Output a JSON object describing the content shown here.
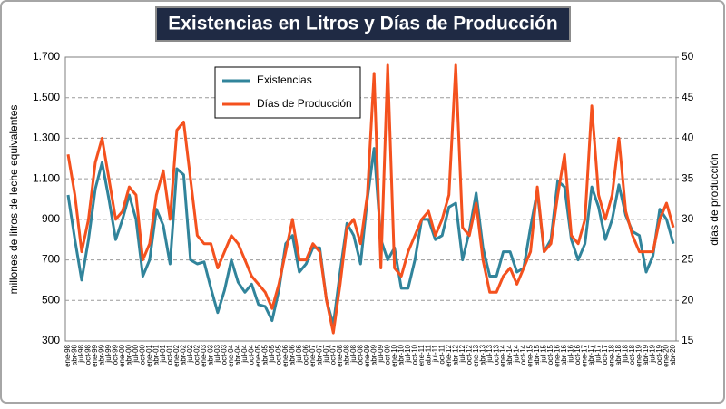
{
  "chart_data": {
    "type": "line",
    "title": "Existencias en Litros y Días de Producción",
    "y_label": "millones de litros de leche equivalentes",
    "y2_label": "días de producción",
    "categories": [
      "ene-98",
      "abr-98",
      "jul-98",
      "oct-98",
      "ene-99",
      "abr-99",
      "jul-99",
      "oct-99",
      "ene-00",
      "abr-00",
      "jul-00",
      "oct-00",
      "ene-01",
      "abr-01",
      "jul-01",
      "oct-01",
      "ene-02",
      "abr-02",
      "jul-02",
      "oct-02",
      "ene-03",
      "abr-03",
      "jul-03",
      "oct-03",
      "ene-04",
      "abr-04",
      "jul-04",
      "oct-04",
      "ene-05",
      "abr-05",
      "jul-05",
      "oct-05",
      "ene-06",
      "abr-06",
      "jul-06",
      "oct-06",
      "ene-07",
      "abr-07",
      "jul-07",
      "oct-07",
      "ene-08",
      "abr-08",
      "jul-08",
      "oct-08",
      "ene-09",
      "abr-09",
      "jul-09",
      "oct-09",
      "ene-10",
      "abr-10",
      "jul-10",
      "oct-10",
      "ene-11",
      "abr-11",
      "jul-11",
      "oct-11",
      "ene-12",
      "abr-12",
      "jul-12",
      "oct-12",
      "ene-13",
      "abr-13",
      "jul-13",
      "oct-13",
      "ene-14",
      "abr-14",
      "jul-14",
      "oct-14",
      "ene-15",
      "abr-15",
      "jul-15",
      "oct-15",
      "ene-16",
      "abr-16",
      "jul-16",
      "oct-16",
      "ene-17",
      "abr-17",
      "jul-17",
      "oct-17",
      "ene-18",
      "abr-18",
      "jul-18",
      "oct-18",
      "ene-19",
      "abr-19",
      "jul-19",
      "oct-19",
      "ene-20",
      "abr-20"
    ],
    "series": [
      {
        "name": "Existencias",
        "color": "#31849b",
        "axis": "y",
        "values": [
          1020,
          800,
          600,
          800,
          1050,
          1180,
          1000,
          800,
          900,
          1020,
          900,
          620,
          700,
          950,
          870,
          680,
          1150,
          1120,
          700,
          680,
          690,
          560,
          440,
          550,
          700,
          590,
          540,
          580,
          480,
          470,
          400,
          550,
          780,
          820,
          640,
          680,
          760,
          760,
          500,
          380,
          640,
          880,
          820,
          680,
          1000,
          1250,
          800,
          700,
          760,
          560,
          560,
          700,
          900,
          900,
          800,
          820,
          960,
          980,
          700,
          840,
          1030,
          760,
          620,
          620,
          740,
          740,
          640,
          660,
          860,
          1040,
          740,
          800,
          1090,
          1060,
          800,
          700,
          780,
          1060,
          960,
          800,
          900,
          1070,
          920,
          840,
          820,
          640,
          720,
          950,
          900,
          780
        ]
      },
      {
        "name": "Días de Producción",
        "color": "#f4511e",
        "axis": "y2",
        "values": [
          38,
          33,
          26,
          30,
          37,
          40,
          35,
          30,
          31,
          34,
          33,
          25,
          27,
          33,
          36,
          30,
          41,
          42,
          35,
          28,
          27,
          27,
          24,
          26,
          28,
          27,
          25,
          23,
          22,
          21,
          19,
          22,
          26,
          30,
          25,
          25,
          27,
          26,
          20,
          16,
          22,
          29,
          30,
          27,
          33,
          48,
          24,
          49,
          24,
          23,
          26,
          28,
          30,
          31,
          28,
          30,
          33,
          49,
          29,
          28,
          32,
          25,
          21,
          21,
          23,
          24,
          22,
          24,
          26,
          34,
          26,
          27,
          33,
          38,
          28,
          27,
          30,
          44,
          33,
          30,
          33,
          40,
          31,
          28,
          26,
          26,
          26,
          30,
          32,
          29
        ]
      }
    ],
    "ylim": [
      300,
      1700
    ],
    "yticks": [
      300,
      500,
      700,
      900,
      {
        "value": 1100,
        "label": "1.100"
      },
      {
        "value": 1300,
        "label": "1.300"
      },
      {
        "value": 1500,
        "label": "1.500"
      },
      {
        "value": 1700,
        "label": "1.700"
      }
    ],
    "y2lim": [
      15,
      50
    ],
    "y2ticks": [
      15,
      20,
      25,
      30,
      35,
      40,
      45,
      50
    ],
    "grid": true,
    "legend": "top-left"
  }
}
